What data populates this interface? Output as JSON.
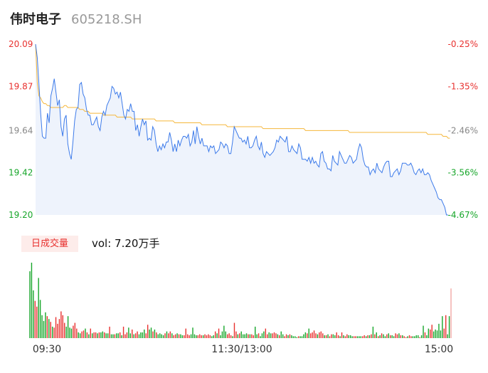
{
  "header": {
    "name": "伟时电子",
    "code": "605218.SH"
  },
  "volume": {
    "badge": "日成交量",
    "text": "vol: 7.20万手"
  },
  "colors": {
    "price": "#3d7bea",
    "avg": "#f5b73b",
    "up": "#e8312f",
    "down": "#17a62a",
    "area": "#eef3fc"
  },
  "chart_data": {
    "type": "line",
    "title": "",
    "y_ticks_left": [
      "20.09",
      "19.87",
      "19.64",
      "19.42",
      "19.20"
    ],
    "y_ticks_right": [
      "-0.25%",
      "-1.35%",
      "-2.46%",
      "-3.56%",
      "-4.67%"
    ],
    "y_tick_values": [
      20.09,
      19.87,
      19.64,
      19.42,
      19.2
    ],
    "ylim": [
      19.2,
      20.09
    ],
    "x_ticks": [
      "09:30",
      "11:30/13:00",
      "15:00"
    ],
    "series": [
      {
        "key": "price",
        "values": [
          20.09,
          20.02,
          19.88,
          19.73,
          19.61,
          19.6,
          19.6,
          19.73,
          19.68,
          19.82,
          19.86,
          19.91,
          19.84,
          19.77,
          19.8,
          19.66,
          19.61,
          19.7,
          19.72,
          19.57,
          19.52,
          19.49,
          19.58,
          19.69,
          19.75,
          19.76,
          19.88,
          19.89,
          19.83,
          19.81,
          19.75,
          19.72,
          19.72,
          19.67,
          19.67,
          19.69,
          19.71,
          19.66,
          19.64,
          19.71,
          19.74,
          19.72,
          19.77,
          19.79,
          19.81,
          19.87,
          19.86,
          19.83,
          19.84,
          19.81,
          19.84,
          19.78,
          19.72,
          19.7,
          19.75,
          19.74,
          19.78,
          19.74,
          19.74,
          19.64,
          19.67,
          19.61,
          19.66,
          19.7,
          19.67,
          19.69,
          19.59,
          19.6,
          19.59,
          19.66,
          19.64,
          19.57,
          19.53,
          19.56,
          19.54,
          19.57,
          19.55,
          19.58,
          19.58,
          19.63,
          19.59,
          19.53,
          19.57,
          19.53,
          19.59,
          19.56,
          19.59,
          19.61,
          19.61,
          19.6,
          19.62,
          19.56,
          19.58,
          19.64,
          19.57,
          19.66,
          19.61,
          19.57,
          19.6,
          19.56,
          19.56,
          19.56,
          19.53,
          19.56,
          19.55,
          19.56,
          19.52,
          19.53,
          19.54,
          19.58,
          19.57,
          19.55,
          19.57,
          19.56,
          19.52,
          19.52,
          19.58,
          19.66,
          19.64,
          19.62,
          19.6,
          19.6,
          19.58,
          19.59,
          19.57,
          19.61,
          19.55,
          19.55,
          19.56,
          19.59,
          19.61,
          19.56,
          19.54,
          19.58,
          19.52,
          19.5,
          19.53,
          19.52,
          19.51,
          19.52,
          19.53,
          19.55,
          19.59,
          19.58,
          19.61,
          19.6,
          19.59,
          19.58,
          19.61,
          19.53,
          19.53,
          19.56,
          19.54,
          19.53,
          19.52,
          19.57,
          19.55,
          19.49,
          19.49,
          19.49,
          19.48,
          19.5,
          19.47,
          19.5,
          19.47,
          19.48,
          19.46,
          19.45,
          19.52,
          19.53,
          19.48,
          19.47,
          19.44,
          19.44,
          19.43,
          19.51,
          19.48,
          19.47,
          19.46,
          19.53,
          19.51,
          19.49,
          19.47,
          19.47,
          19.49,
          19.51,
          19.5,
          19.47,
          19.48,
          19.49,
          19.54,
          19.57,
          19.55,
          19.49,
          19.46,
          19.45,
          19.45,
          19.41,
          19.43,
          19.44,
          19.42,
          19.47,
          19.44,
          19.43,
          19.42,
          19.45,
          19.47,
          19.48,
          19.48,
          19.4,
          19.4,
          19.42,
          19.43,
          19.44,
          19.41,
          19.43,
          19.47,
          19.47,
          19.47,
          19.46,
          19.46,
          19.47,
          19.45,
          19.42,
          19.41,
          19.43,
          19.44,
          19.42,
          19.44,
          19.41,
          19.41,
          19.42,
          19.41,
          19.38,
          19.36,
          19.34,
          19.32,
          19.29,
          19.28,
          19.28,
          19.26,
          19.24,
          19.2,
          19.2
        ]
      },
      {
        "key": "avg",
        "values": [
          20.09,
          19.89,
          19.82,
          19.81,
          19.79,
          19.78,
          19.78,
          19.77,
          19.77,
          19.76,
          19.76,
          19.76,
          19.76,
          19.76,
          19.76,
          19.76,
          19.76,
          19.77,
          19.77,
          19.76,
          19.76,
          19.76,
          19.76,
          19.76,
          19.76,
          19.76,
          19.75,
          19.75,
          19.75,
          19.74,
          19.74,
          19.74,
          19.73,
          19.73,
          19.73,
          19.73,
          19.73,
          19.73,
          19.73,
          19.73,
          19.72,
          19.72,
          19.72,
          19.72,
          19.72,
          19.72,
          19.72,
          19.72,
          19.71,
          19.71,
          19.71,
          19.71,
          19.71,
          19.71,
          19.71,
          19.71,
          19.71,
          19.7,
          19.7,
          19.7,
          19.7,
          19.7,
          19.7,
          19.7,
          19.7,
          19.7,
          19.7,
          19.7,
          19.7,
          19.7,
          19.7,
          19.69,
          19.69,
          19.69,
          19.69,
          19.69,
          19.69,
          19.69,
          19.69,
          19.69,
          19.69,
          19.69,
          19.68,
          19.68,
          19.68,
          19.68,
          19.68,
          19.68,
          19.68,
          19.68,
          19.68,
          19.68,
          19.68,
          19.68,
          19.68,
          19.68,
          19.68,
          19.68,
          19.67,
          19.67,
          19.67,
          19.67,
          19.67,
          19.67,
          19.67,
          19.67,
          19.67,
          19.67,
          19.67,
          19.67,
          19.67,
          19.67,
          19.67,
          19.66,
          19.66,
          19.66,
          19.66,
          19.66,
          19.66,
          19.66,
          19.66,
          19.66,
          19.66,
          19.66,
          19.66,
          19.66,
          19.66,
          19.66,
          19.66,
          19.66,
          19.66,
          19.66,
          19.66,
          19.66,
          19.65,
          19.65,
          19.65,
          19.65,
          19.65,
          19.65,
          19.65,
          19.65,
          19.65,
          19.65,
          19.65,
          19.65,
          19.65,
          19.65,
          19.65,
          19.65,
          19.65,
          19.65,
          19.65,
          19.65,
          19.65,
          19.65,
          19.65,
          19.65,
          19.65,
          19.64,
          19.64,
          19.64,
          19.64,
          19.64,
          19.64,
          19.64,
          19.64,
          19.64,
          19.64,
          19.64,
          19.64,
          19.64,
          19.64,
          19.64,
          19.64,
          19.64,
          19.64,
          19.64,
          19.64,
          19.64,
          19.64,
          19.64,
          19.64,
          19.64,
          19.64,
          19.63,
          19.63,
          19.63,
          19.63,
          19.63,
          19.63,
          19.63,
          19.63,
          19.63,
          19.63,
          19.63,
          19.63,
          19.63,
          19.63,
          19.63,
          19.63,
          19.63,
          19.63,
          19.63,
          19.63,
          19.63,
          19.63,
          19.63,
          19.63,
          19.63,
          19.63,
          19.63,
          19.63,
          19.63,
          19.63,
          19.63,
          19.63,
          19.63,
          19.63,
          19.63,
          19.63,
          19.63,
          19.63,
          19.63,
          19.63,
          19.63,
          19.63,
          19.63,
          19.63,
          19.63,
          19.63,
          19.62,
          19.62,
          19.62,
          19.62,
          19.62,
          19.62,
          19.62,
          19.62,
          19.62,
          19.61,
          19.61,
          19.61,
          19.6,
          19.6
        ]
      }
    ],
    "volume_bars": [
      [
        140,
        "down"
      ],
      [
        158,
        "down"
      ],
      [
        100,
        "down"
      ],
      [
        78,
        "up"
      ],
      [
        66,
        "up"
      ],
      [
        126,
        "down"
      ],
      [
        80,
        "down"
      ],
      [
        48,
        "down"
      ],
      [
        36,
        "down"
      ],
      [
        54,
        "down"
      ],
      [
        46,
        "up"
      ],
      [
        40,
        "down"
      ],
      [
        34,
        "up"
      ],
      [
        24,
        "down"
      ],
      [
        22,
        "up"
      ],
      [
        44,
        "up"
      ],
      [
        30,
        "up"
      ],
      [
        40,
        "up"
      ],
      [
        56,
        "up"
      ],
      [
        48,
        "up"
      ],
      [
        32,
        "up"
      ],
      [
        24,
        "down"
      ],
      [
        46,
        "down"
      ],
      [
        22,
        "down"
      ],
      [
        20,
        "down"
      ],
      [
        26,
        "up"
      ],
      [
        32,
        "up"
      ],
      [
        20,
        "up"
      ],
      [
        12,
        "down"
      ],
      [
        10,
        "down"
      ],
      [
        14,
        "up"
      ],
      [
        16,
        "up"
      ],
      [
        20,
        "down"
      ],
      [
        12,
        "up"
      ],
      [
        8,
        "down"
      ],
      [
        20,
        "up"
      ],
      [
        10,
        "down"
      ],
      [
        12,
        "up"
      ],
      [
        12,
        "up"
      ],
      [
        10,
        "down"
      ],
      [
        12,
        "up"
      ],
      [
        12,
        "down"
      ],
      [
        14,
        "down"
      ],
      [
        12,
        "up"
      ],
      [
        10,
        "down"
      ],
      [
        10,
        "down"
      ],
      [
        24,
        "up"
      ],
      [
        8,
        "down"
      ],
      [
        8,
        "down"
      ],
      [
        8,
        "up"
      ],
      [
        10,
        "down"
      ],
      [
        10,
        "down"
      ],
      [
        12,
        "up"
      ],
      [
        6,
        "down"
      ],
      [
        24,
        "up"
      ],
      [
        8,
        "up"
      ],
      [
        12,
        "up"
      ],
      [
        22,
        "down"
      ],
      [
        10,
        "down"
      ],
      [
        18,
        "up"
      ],
      [
        8,
        "down"
      ],
      [
        10,
        "up"
      ],
      [
        14,
        "up"
      ],
      [
        8,
        "down"
      ],
      [
        12,
        "down"
      ],
      [
        12,
        "down"
      ],
      [
        18,
        "down"
      ],
      [
        10,
        "up"
      ],
      [
        28,
        "up"
      ],
      [
        18,
        "down"
      ],
      [
        22,
        "down"
      ],
      [
        14,
        "up"
      ],
      [
        18,
        "down"
      ],
      [
        12,
        "up"
      ],
      [
        8,
        "down"
      ],
      [
        10,
        "down"
      ],
      [
        8,
        "down"
      ],
      [
        6,
        "down"
      ],
      [
        10,
        "up"
      ],
      [
        14,
        "down"
      ],
      [
        10,
        "up"
      ],
      [
        14,
        "up"
      ],
      [
        10,
        "down"
      ],
      [
        6,
        "up"
      ],
      [
        8,
        "up"
      ],
      [
        10,
        "down"
      ],
      [
        8,
        "up"
      ],
      [
        8,
        "down"
      ],
      [
        6,
        "down"
      ],
      [
        6,
        "up"
      ],
      [
        20,
        "up"
      ],
      [
        8,
        "up"
      ],
      [
        6,
        "up"
      ],
      [
        8,
        "down"
      ],
      [
        22,
        "down"
      ],
      [
        8,
        "down"
      ],
      [
        6,
        "down"
      ],
      [
        6,
        "up"
      ],
      [
        8,
        "up"
      ],
      [
        6,
        "up"
      ],
      [
        6,
        "down"
      ],
      [
        8,
        "up"
      ],
      [
        6,
        "up"
      ],
      [
        8,
        "up"
      ],
      [
        6,
        "up"
      ],
      [
        4,
        "down"
      ],
      [
        6,
        "down"
      ],
      [
        14,
        "up"
      ],
      [
        10,
        "down"
      ],
      [
        20,
        "up"
      ],
      [
        6,
        "down"
      ],
      [
        14,
        "down"
      ],
      [
        26,
        "down"
      ],
      [
        14,
        "down"
      ],
      [
        8,
        "up"
      ],
      [
        10,
        "up"
      ],
      [
        6,
        "up"
      ],
      [
        4,
        "down"
      ],
      [
        32,
        "up"
      ],
      [
        14,
        "up"
      ],
      [
        8,
        "down"
      ],
      [
        10,
        "up"
      ],
      [
        14,
        "down"
      ],
      [
        8,
        "down"
      ],
      [
        8,
        "down"
      ],
      [
        10,
        "down"
      ],
      [
        8,
        "up"
      ],
      [
        8,
        "down"
      ],
      [
        8,
        "up"
      ],
      [
        6,
        "up"
      ],
      [
        24,
        "down"
      ],
      [
        8,
        "down"
      ],
      [
        10,
        "up"
      ],
      [
        4,
        "down"
      ],
      [
        10,
        "down"
      ],
      [
        14,
        "down"
      ],
      [
        20,
        "up"
      ],
      [
        8,
        "up"
      ],
      [
        12,
        "down"
      ],
      [
        10,
        "down"
      ],
      [
        10,
        "up"
      ],
      [
        12,
        "up"
      ],
      [
        10,
        "up"
      ],
      [
        8,
        "down"
      ],
      [
        6,
        "up"
      ],
      [
        14,
        "down"
      ],
      [
        8,
        "down"
      ],
      [
        4,
        "up"
      ],
      [
        8,
        "up"
      ],
      [
        6,
        "down"
      ],
      [
        8,
        "up"
      ],
      [
        6,
        "down"
      ],
      [
        4,
        "down"
      ],
      [
        4,
        "down"
      ],
      [
        2,
        "down"
      ],
      [
        4,
        "up"
      ],
      [
        4,
        "down"
      ],
      [
        4,
        "down"
      ],
      [
        8,
        "down"
      ],
      [
        12,
        "down"
      ],
      [
        10,
        "up"
      ],
      [
        20,
        "down"
      ],
      [
        10,
        "up"
      ],
      [
        12,
        "up"
      ],
      [
        16,
        "up"
      ],
      [
        10,
        "up"
      ],
      [
        8,
        "down"
      ],
      [
        12,
        "up"
      ],
      [
        14,
        "up"
      ],
      [
        10,
        "up"
      ],
      [
        6,
        "down"
      ],
      [
        6,
        "up"
      ],
      [
        8,
        "down"
      ],
      [
        4,
        "up"
      ],
      [
        8,
        "up"
      ],
      [
        8,
        "down"
      ],
      [
        6,
        "down"
      ],
      [
        12,
        "up"
      ],
      [
        6,
        "up"
      ],
      [
        4,
        "down"
      ],
      [
        12,
        "up"
      ],
      [
        6,
        "down"
      ],
      [
        4,
        "up"
      ],
      [
        8,
        "up"
      ],
      [
        6,
        "down"
      ],
      [
        6,
        "down"
      ],
      [
        4,
        "down"
      ],
      [
        4,
        "up"
      ],
      [
        4,
        "up"
      ],
      [
        4,
        "down"
      ],
      [
        4,
        "down"
      ],
      [
        4,
        "down"
      ],
      [
        4,
        "up"
      ],
      [
        6,
        "up"
      ],
      [
        4,
        "down"
      ],
      [
        6,
        "up"
      ],
      [
        6,
        "down"
      ],
      [
        8,
        "up"
      ],
      [
        24,
        "down"
      ],
      [
        8,
        "up"
      ],
      [
        12,
        "down"
      ],
      [
        4,
        "up"
      ],
      [
        6,
        "down"
      ],
      [
        10,
        "up"
      ],
      [
        8,
        "down"
      ],
      [
        4,
        "down"
      ],
      [
        8,
        "up"
      ],
      [
        10,
        "down"
      ],
      [
        6,
        "up"
      ],
      [
        6,
        "down"
      ],
      [
        4,
        "down"
      ],
      [
        10,
        "up"
      ],
      [
        8,
        "up"
      ],
      [
        10,
        "down"
      ],
      [
        6,
        "up"
      ],
      [
        6,
        "down"
      ],
      [
        4,
        "up"
      ],
      [
        2,
        "up"
      ],
      [
        4,
        "down"
      ],
      [
        6,
        "up"
      ],
      [
        4,
        "up"
      ],
      [
        4,
        "down"
      ],
      [
        4,
        "down"
      ],
      [
        6,
        "down"
      ],
      [
        6,
        "down"
      ],
      [
        2,
        "up"
      ],
      [
        6,
        "down"
      ],
      [
        26,
        "down"
      ],
      [
        12,
        "up"
      ],
      [
        6,
        "down"
      ],
      [
        20,
        "down"
      ],
      [
        18,
        "up"
      ],
      [
        28,
        "up"
      ],
      [
        14,
        "down"
      ],
      [
        18,
        "down"
      ],
      [
        16,
        "down"
      ],
      [
        30,
        "down"
      ],
      [
        16,
        "down"
      ],
      [
        46,
        "down"
      ],
      [
        20,
        "up"
      ],
      [
        48,
        "up"
      ],
      [
        8,
        "down"
      ],
      [
        46,
        "down"
      ],
      [
        104,
        "up"
      ]
    ]
  }
}
